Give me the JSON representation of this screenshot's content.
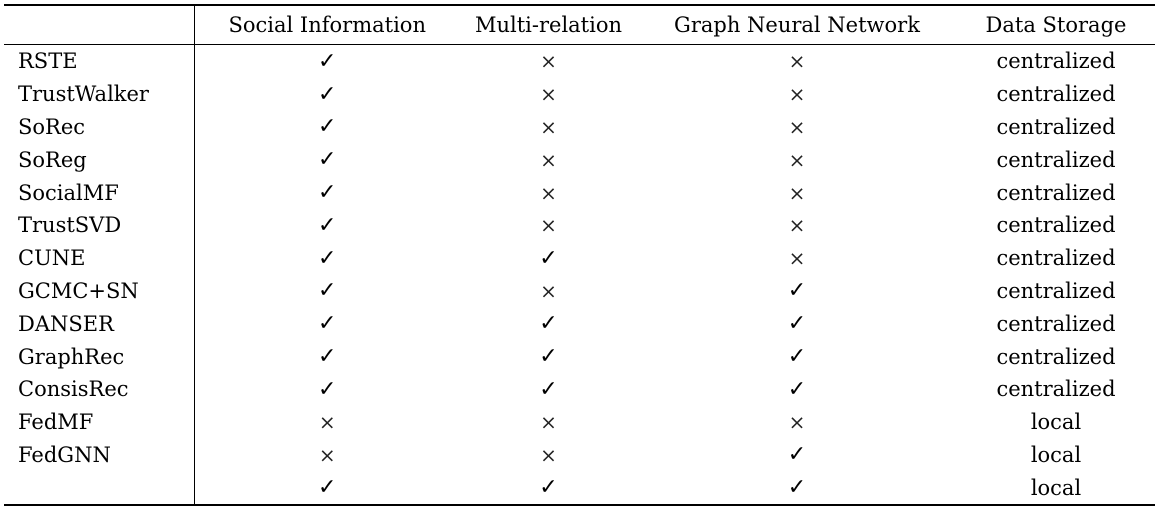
{
  "table": {
    "headers": [
      "",
      "Social Information",
      "Multi-relation",
      "Graph Neural Network",
      "Data Storage"
    ],
    "symbols": {
      "yes": "✓",
      "no": "×"
    },
    "rows": [
      {
        "method": "RSTE",
        "social": "✓",
        "multi": "×",
        "gnn": "×",
        "storage": "centralized"
      },
      {
        "method": "TrustWalker",
        "social": "✓",
        "multi": "×",
        "gnn": "×",
        "storage": "centralized"
      },
      {
        "method": "SoRec",
        "social": "✓",
        "multi": "×",
        "gnn": "×",
        "storage": "centralized"
      },
      {
        "method": "SoReg",
        "social": "✓",
        "multi": "×",
        "gnn": "×",
        "storage": "centralized"
      },
      {
        "method": "SocialMF",
        "social": "✓",
        "multi": "×",
        "gnn": "×",
        "storage": "centralized"
      },
      {
        "method": "TrustSVD",
        "social": "✓",
        "multi": "×",
        "gnn": "×",
        "storage": "centralized"
      },
      {
        "method": "CUNE",
        "social": "✓",
        "multi": "✓",
        "gnn": "×",
        "storage": "centralized"
      },
      {
        "method": "GCMC+SN",
        "social": "✓",
        "multi": "×",
        "gnn": "✓",
        "storage": "centralized"
      },
      {
        "method": "DANSER",
        "social": "✓",
        "multi": "✓",
        "gnn": "✓",
        "storage": "centralized"
      },
      {
        "method": "GraphRec",
        "social": "✓",
        "multi": "✓",
        "gnn": "✓",
        "storage": "centralized"
      },
      {
        "method": "ConsisRec",
        "social": "✓",
        "multi": "✓",
        "gnn": "✓",
        "storage": "centralized"
      },
      {
        "method": "FedMF",
        "social": "×",
        "multi": "×",
        "gnn": "×",
        "storage": "local"
      },
      {
        "method": "FedGNN",
        "social": "×",
        "multi": "×",
        "gnn": "✓",
        "storage": "local"
      },
      {
        "method": "",
        "social": "✓",
        "multi": "✓",
        "gnn": "✓",
        "storage": "local"
      }
    ]
  }
}
